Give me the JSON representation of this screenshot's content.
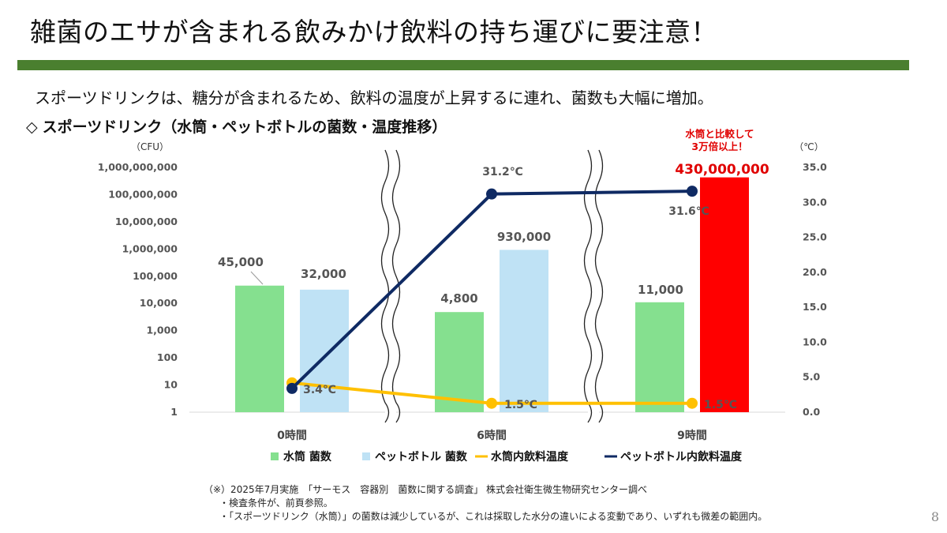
{
  "page": {
    "title": "雑菌のエサが含まれる飲みかけ飲料の持ち運びに要注意！",
    "subtitle": "スポーツドリンクは、糖分が含まれるため、飲料の温度が上昇するに連れ、菌数も大幅に増加。",
    "section_marker": "◇",
    "section_title": "スポーツドリンク（水筒・ペットボトルの菌数・温度推移）",
    "page_number": "8",
    "accent_color": "#4a7f2f"
  },
  "footnote": {
    "line1": "（※）2025年7月実施　「サーモス　容器別　菌数に関する調査」 株式会社衛生微生物研究センター調べ",
    "line2": "・検査条件が、前頁参照。",
    "line3": "・「スポーツドリンク（水筒）」の菌数は減少しているが、これは採取した水分の違いによる変動であり、いずれも微差の範囲内。"
  },
  "chart_data": {
    "type": "bar",
    "title": "スポーツドリンク（水筒・ペットボトルの菌数・温度推移）",
    "categories": [
      "0時間",
      "6時間",
      "9時間"
    ],
    "y_left": {
      "unit": "（CFU）",
      "scale": "log",
      "ylim": [
        1,
        1000000000
      ],
      "ticks": [
        "1",
        "10",
        "100",
        "1,000",
        "10,000",
        "100,000",
        "1,000,000",
        "10,000,000",
        "100,000,000",
        "1,000,000,000"
      ]
    },
    "y_right": {
      "unit": "（℃）",
      "ylim": [
        0,
        35
      ],
      "ticks": [
        "0.0",
        "5.0",
        "10.0",
        "15.0",
        "20.0",
        "25.0",
        "30.0",
        "35.0"
      ]
    },
    "bar_series": [
      {
        "name": "水筒 菌数",
        "color": "#85e08f",
        "values": [
          45000,
          4800,
          11000
        ],
        "labels": [
          "45,000",
          "4,800",
          "11,000"
        ]
      },
      {
        "name": "ペットボトル 菌数",
        "color": "#bfe2f5",
        "values": [
          32000,
          930000,
          430000000
        ],
        "labels": [
          "32,000",
          "930,000",
          "430,000,000"
        ],
        "highlight_color": "#ff0000"
      }
    ],
    "line_series": [
      {
        "name": "水筒内飲料温度",
        "color": "#ffc000",
        "values": [
          3.4,
          1.5,
          1.5
        ],
        "labels": [
          "3.4℃",
          "1.5℃",
          "1.5℃"
        ]
      },
      {
        "name": "ペットボトル内飲料温度",
        "color": "#0f2a63",
        "values": [
          3.4,
          31.2,
          31.6
        ],
        "labels": [
          "3.4℃",
          "31.2℃",
          "31.6℃"
        ]
      }
    ],
    "annotation": {
      "line1": "水筒と比較して",
      "line2": "3万倍以上！"
    },
    "legend_position": "bottom",
    "grid": false
  }
}
